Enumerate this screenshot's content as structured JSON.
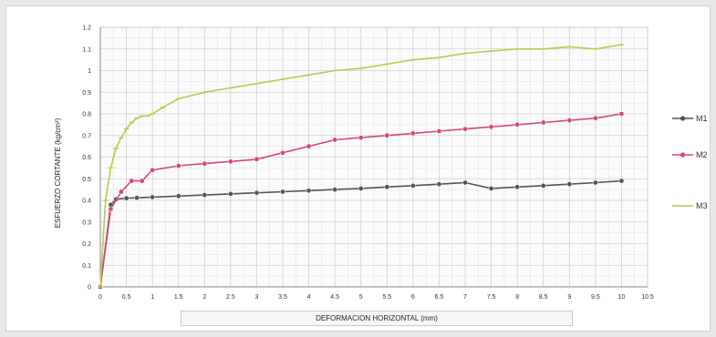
{
  "chart_data": {
    "type": "line",
    "xlabel": "DEFORMACION HORIZONTAL (mm)",
    "ylabel": "ESFUERZO CORTANTE (kg/cm²)",
    "xlim": [
      0,
      10.5
    ],
    "ylim": [
      0,
      1.2
    ],
    "x_ticks": [
      "0",
      "0.5",
      "1",
      "1.5",
      "2",
      "2.5",
      "3",
      "3.5",
      "4",
      "4.5",
      "5",
      "5.5",
      "6",
      "6.5",
      "7",
      "7.5",
      "8",
      "8.5",
      "9",
      "9.5",
      "10",
      "10.5"
    ],
    "y_ticks": [
      "0",
      "0.1",
      "0.2",
      "0.3",
      "0.4",
      "0.5",
      "0.6",
      "0.7",
      "0.8",
      "0.9",
      "1",
      "1.1",
      "1.2"
    ],
    "grid": true,
    "legend_position": "right",
    "series": [
      {
        "name": "M1",
        "color": "#555555",
        "marker": "circle",
        "x": [
          0,
          0.2,
          0.3,
          0.5,
          0.7,
          1,
          1.5,
          2,
          2.5,
          3,
          3.5,
          4,
          4.5,
          5,
          5.5,
          6,
          6.5,
          7,
          7.5,
          8,
          8.5,
          9,
          9.5,
          10
        ],
        "y": [
          0,
          0.38,
          0.405,
          0.41,
          0.412,
          0.415,
          0.42,
          0.425,
          0.43,
          0.435,
          0.44,
          0.445,
          0.45,
          0.455,
          0.462,
          0.468,
          0.475,
          0.482,
          0.455,
          0.462,
          0.468,
          0.475,
          0.482,
          0.49
        ]
      },
      {
        "name": "M2",
        "color": "#d9466f",
        "marker": "circle",
        "x": [
          0,
          0.2,
          0.4,
          0.6,
          0.8,
          1,
          1.5,
          2,
          2.5,
          3,
          3.5,
          4,
          4.5,
          5,
          5.5,
          6,
          6.5,
          7,
          7.5,
          8,
          8.5,
          9,
          9.5,
          10
        ],
        "y": [
          0,
          0.36,
          0.44,
          0.49,
          0.49,
          0.54,
          0.56,
          0.57,
          0.58,
          0.59,
          0.62,
          0.65,
          0.68,
          0.69,
          0.7,
          0.71,
          0.72,
          0.73,
          0.74,
          0.75,
          0.76,
          0.77,
          0.78,
          0.8
        ]
      },
      {
        "name": "M3",
        "color": "#b8cc4a",
        "marker": "dash",
        "x": [
          0,
          0.1,
          0.2,
          0.3,
          0.4,
          0.5,
          0.6,
          0.7,
          0.8,
          0.9,
          1,
          1.2,
          1.5,
          2,
          2.5,
          3,
          3.5,
          4,
          4.5,
          5,
          5.5,
          6,
          6.5,
          7,
          7.5,
          8,
          8.5,
          9,
          9.5,
          10
        ],
        "y": [
          0,
          0.4,
          0.55,
          0.64,
          0.69,
          0.73,
          0.76,
          0.78,
          0.79,
          0.79,
          0.8,
          0.83,
          0.87,
          0.9,
          0.92,
          0.94,
          0.96,
          0.98,
          1.0,
          1.01,
          1.03,
          1.05,
          1.06,
          1.08,
          1.09,
          1.1,
          1.1,
          1.11,
          1.1,
          1.12
        ]
      }
    ]
  }
}
